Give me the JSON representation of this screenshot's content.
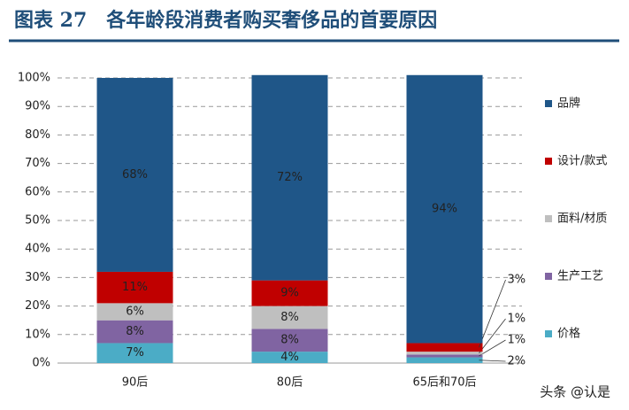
{
  "chart_data": {
    "type": "stacked_bar",
    "title": "图表 27　各年龄段消费者购买奢侈品的首要原因",
    "categories": [
      "90后",
      "80后",
      "65后和70后"
    ],
    "series": [
      {
        "name": "价格",
        "color": "#4bacc6",
        "values": [
          7,
          4,
          2
        ],
        "value_labels": [
          "7%",
          "4%",
          "2%"
        ]
      },
      {
        "name": "生产工艺",
        "color": "#8064a2",
        "values": [
          8,
          8,
          1
        ],
        "value_labels": [
          "8%",
          "8%",
          "1%"
        ]
      },
      {
        "name": "面料/材质",
        "color": "#bfbfbf",
        "values": [
          6,
          8,
          1
        ],
        "value_labels": [
          "6%",
          "8%",
          "1%"
        ]
      },
      {
        "name": "设计/款式",
        "color": "#c00000",
        "values": [
          11,
          9,
          3
        ],
        "value_labels": [
          "11%",
          "9%",
          "3%"
        ]
      },
      {
        "name": "品牌",
        "color": "#1f5688",
        "values": [
          68,
          72,
          94
        ],
        "value_labels": [
          "68%",
          "72%",
          "94%"
        ]
      }
    ],
    "ylim": [
      0,
      100
    ],
    "yticks": [
      {
        "value": 0,
        "label": "0%"
      },
      {
        "value": 10,
        "label": "10%"
      },
      {
        "value": 20,
        "label": "20%"
      },
      {
        "value": 30,
        "label": "30%"
      },
      {
        "value": 40,
        "label": "40%"
      },
      {
        "value": 50,
        "label": "50%"
      },
      {
        "value": 60,
        "label": "60%"
      },
      {
        "value": 70,
        "label": "70%"
      },
      {
        "value": 80,
        "label": "80%"
      },
      {
        "value": 90,
        "label": "90%"
      },
      {
        "value": 100,
        "label": "100%"
      }
    ],
    "grid": true,
    "legend": "right",
    "watermark": "头条 @认是"
  }
}
